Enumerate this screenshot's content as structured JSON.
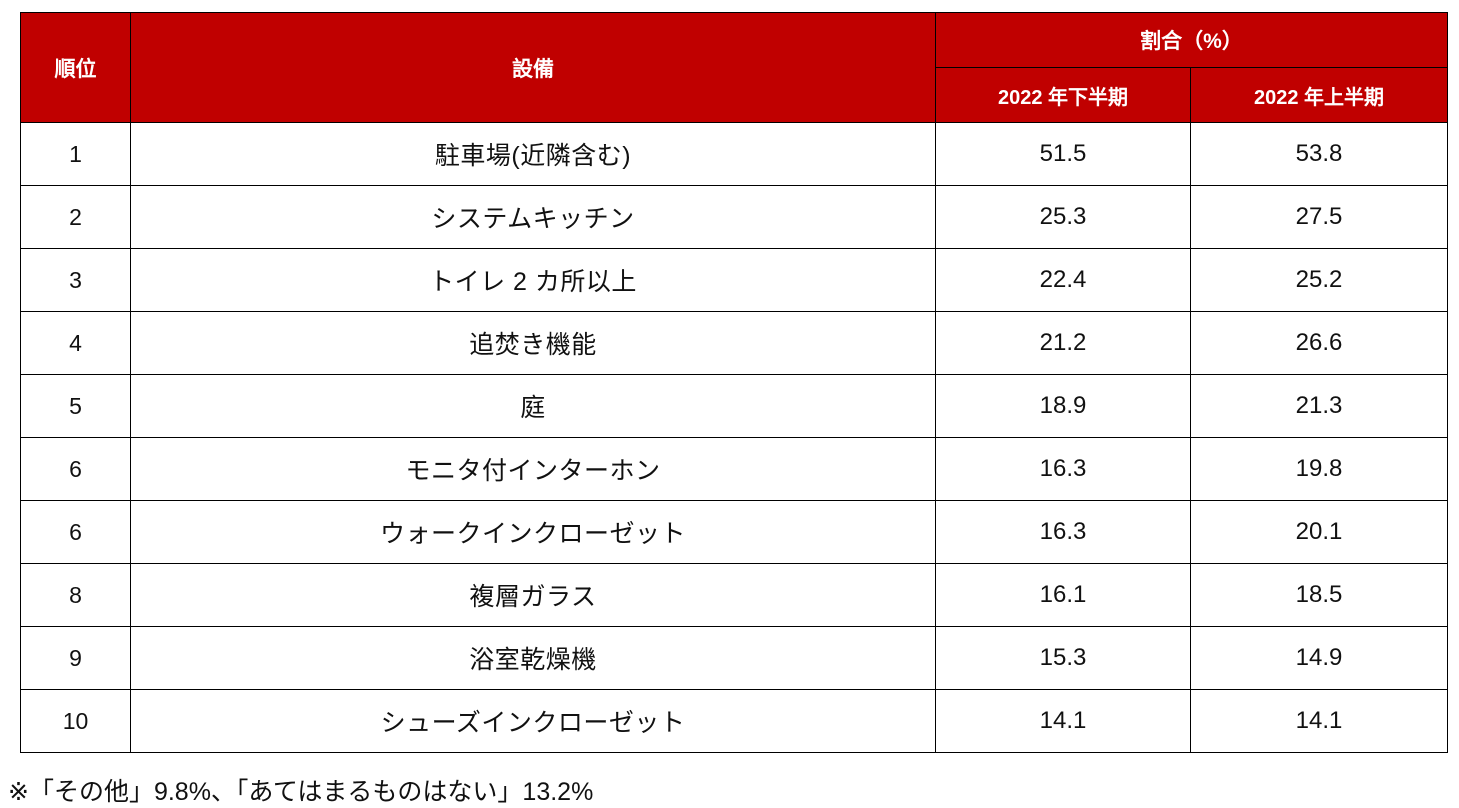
{
  "table": {
    "headers": {
      "rank": "順位",
      "equipment": "設備",
      "ratio_group": "割合（%）",
      "period_h2": "2022 年下半期",
      "period_h1": "2022 年上半期"
    },
    "rows": [
      {
        "rank": "1",
        "equipment": "駐車場(近隣含む)",
        "h2_2022": "51.5",
        "h1_2022": "53.8"
      },
      {
        "rank": "2",
        "equipment": "システムキッチン",
        "h2_2022": "25.3",
        "h1_2022": "27.5"
      },
      {
        "rank": "3",
        "equipment": "トイレ 2 カ所以上",
        "h2_2022": "22.4",
        "h1_2022": "25.2"
      },
      {
        "rank": "4",
        "equipment": "追焚き機能",
        "h2_2022": "21.2",
        "h1_2022": "26.6"
      },
      {
        "rank": "5",
        "equipment": "庭",
        "h2_2022": "18.9",
        "h1_2022": "21.3"
      },
      {
        "rank": "6",
        "equipment": "モニタ付インターホン",
        "h2_2022": "16.3",
        "h1_2022": "19.8"
      },
      {
        "rank": "6",
        "equipment": "ウォークインクローゼット",
        "h2_2022": "16.3",
        "h1_2022": "20.1"
      },
      {
        "rank": "8",
        "equipment": "複層ガラス",
        "h2_2022": "16.1",
        "h1_2022": "18.5"
      },
      {
        "rank": "9",
        "equipment": "浴室乾燥機",
        "h2_2022": "15.3",
        "h1_2022": "14.9"
      },
      {
        "rank": "10",
        "equipment": "シューズインクローゼット",
        "h2_2022": "14.1",
        "h1_2022": "14.1"
      }
    ]
  },
  "footnote": "※「その他」9.8%、「あてはまるものはない」13.2%",
  "colors": {
    "header_bg": "#c00000",
    "header_text": "#ffffff",
    "border": "#000000",
    "body_text": "#111111"
  }
}
